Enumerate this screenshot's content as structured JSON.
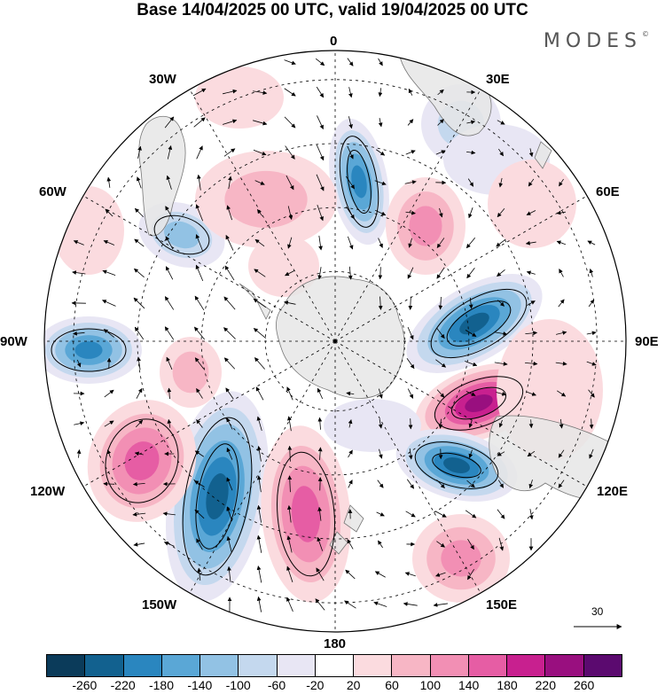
{
  "title": "Base 14/04/2025 00 UTC, valid 19/04/2025 00 UTC",
  "brand": "MODES",
  "brand_mark": "©",
  "map": {
    "projection": "south-polar-stereographic",
    "longitude_labels": [
      "0",
      "30E",
      "60E",
      "90E",
      "120E",
      "150E",
      "180",
      "150W",
      "120W",
      "90W",
      "60W",
      "30W"
    ],
    "vector_reference_value": "30"
  },
  "colorbar": {
    "colors": [
      "#0b3b5a",
      "#12618f",
      "#2a86bf",
      "#5aa7d6",
      "#92c2e4",
      "#c4d8ee",
      "#e8e6f4",
      "#ffffff",
      "#fbdbdf",
      "#f7b6c5",
      "#f28fb4",
      "#e65da4",
      "#c8208f",
      "#990f7f",
      "#5b0a6f"
    ],
    "tick_labels": [
      "-260",
      "-220",
      "-180",
      "-140",
      "-100",
      "-60",
      "-20",
      "20",
      "60",
      "100",
      "140",
      "180",
      "220",
      "260"
    ]
  },
  "colors": {
    "land": "#e6e6e6",
    "coast": "#777777",
    "grid": "#000000"
  }
}
